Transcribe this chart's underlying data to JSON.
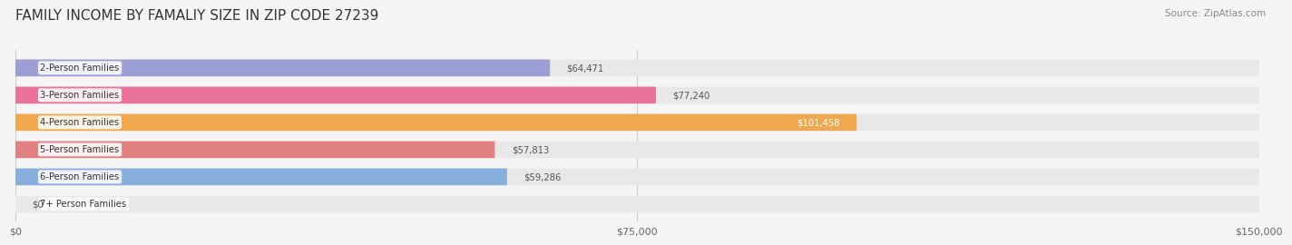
{
  "title": "FAMILY INCOME BY FAMALIY SIZE IN ZIP CODE 27239",
  "source": "Source: ZipAtlas.com",
  "categories": [
    "2-Person Families",
    "3-Person Families",
    "4-Person Families",
    "5-Person Families",
    "6-Person Families",
    "7+ Person Families"
  ],
  "values": [
    64471,
    77240,
    101458,
    57813,
    59286,
    0
  ],
  "bar_colors": [
    "#9b9fd4",
    "#e8729a",
    "#f0a84e",
    "#e08080",
    "#88aedd",
    "#c8b8d8"
  ],
  "value_labels": [
    "$64,471",
    "$77,240",
    "$101,458",
    "$57,813",
    "$59,286",
    "$0"
  ],
  "xlim": [
    0,
    150000
  ],
  "xtick_values": [
    0,
    75000,
    150000
  ],
  "xtick_labels": [
    "$0",
    "$75,000",
    "$150,000"
  ],
  "title_fontsize": 11,
  "bar_height": 0.62,
  "background_color": "#f5f5f5",
  "bar_bg_color": "#e8e8e8"
}
